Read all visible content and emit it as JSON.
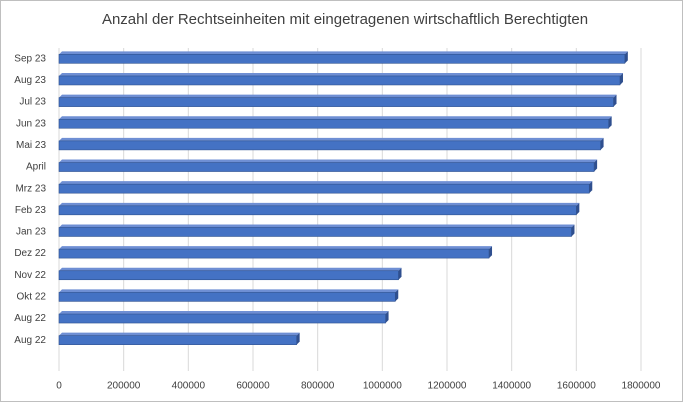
{
  "chart_data": {
    "type": "bar",
    "orientation": "horizontal",
    "title": "Anzahl der Rechtseinheiten mit eingetragenen wirtschaftlich Berechtigten",
    "categories": [
      "Sep 23",
      "Aug 23",
      "Jul 23",
      "Jun 23",
      "Mai 23",
      "April",
      "Mrz 23",
      "Feb 23",
      "Jan 23",
      "Dez 22",
      "Nov 22",
      "Okt 22",
      "Aug 22",
      "Aug 22"
    ],
    "values": [
      1750000,
      1735000,
      1715000,
      1700000,
      1675000,
      1655000,
      1640000,
      1600000,
      1585000,
      1330000,
      1050000,
      1040000,
      1010000,
      735000
    ],
    "color": "#4472c4",
    "xlim": [
      0,
      1800000
    ],
    "xticks": [
      0,
      200000,
      400000,
      600000,
      800000,
      1000000,
      1200000,
      1400000,
      1600000,
      1800000
    ],
    "grid": true
  }
}
